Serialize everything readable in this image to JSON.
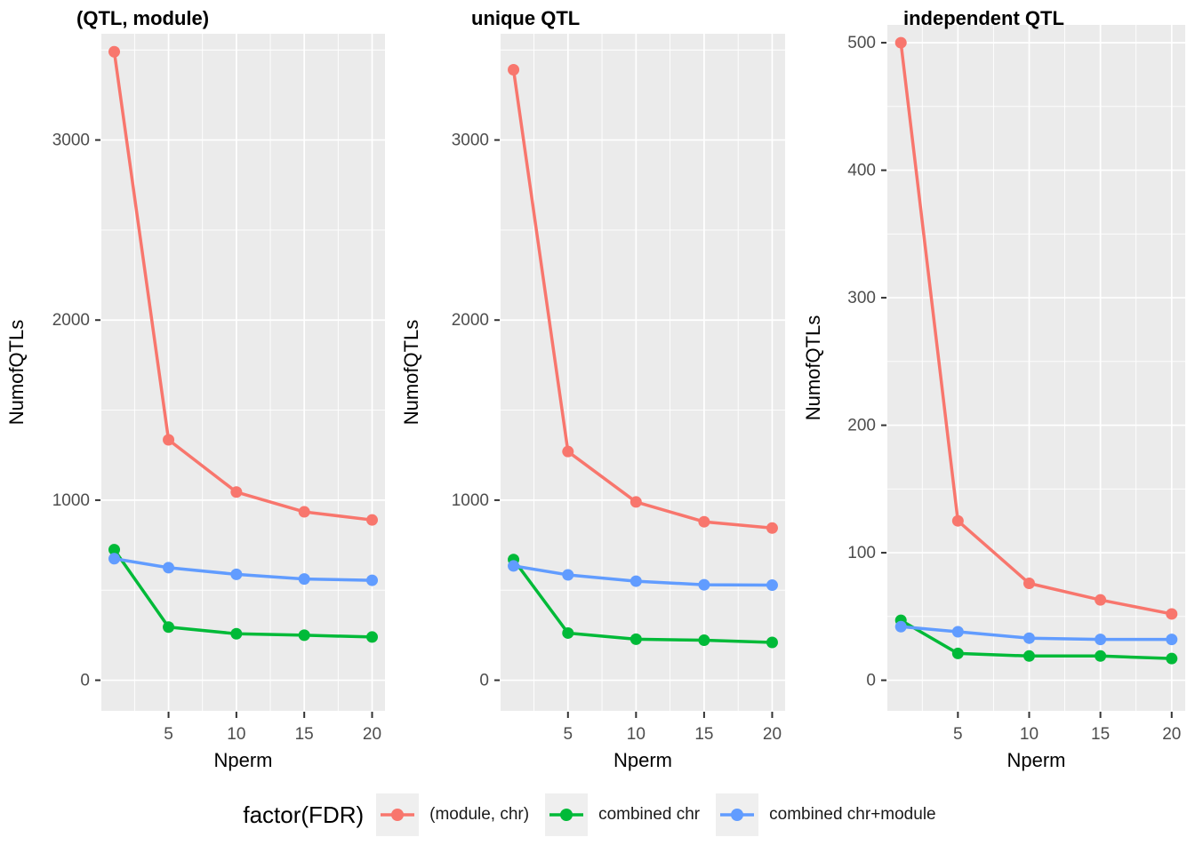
{
  "figure": {
    "background": "#FFFFFF",
    "panel_background": "#EBEBEB",
    "grid_color": "#FFFFFF",
    "tick_label_color": "#4D4D4D",
    "tick_mark_color": "#333333",
    "axis_title_color": "#000000",
    "title_color": "#000000"
  },
  "legend": {
    "title": "factor(FDR)",
    "position": "bottom",
    "entries": [
      {
        "label": "(module, chr)",
        "color": "#F8766D"
      },
      {
        "label": "combined chr",
        "color": "#00BA38"
      },
      {
        "label": "combined chr+module",
        "color": "#619CFF"
      }
    ]
  },
  "chart_data": [
    {
      "type": "line",
      "title": "(QTL, module)",
      "xlabel": "Nperm",
      "ylabel": "NumofQTLs",
      "x": [
        1,
        5,
        10,
        15,
        20
      ],
      "xticks": [
        5,
        10,
        15,
        20
      ],
      "xminor": [
        2.5,
        7.5,
        12.5,
        17.5
      ],
      "xlim": [
        0.05,
        20.95
      ],
      "ylim": [
        -170,
        3590
      ],
      "yticks": [
        0,
        1000,
        2000,
        3000
      ],
      "yminor": [
        500,
        1500,
        2500,
        3500
      ],
      "grid": true,
      "series": [
        {
          "name": "(module, chr)",
          "color": "#F8766D",
          "values": [
            3490,
            1335,
            1045,
            935,
            890
          ]
        },
        {
          "name": "combined chr",
          "color": "#00BA38",
          "values": [
            725,
            295,
            258,
            250,
            240
          ]
        },
        {
          "name": "combined chr+module",
          "color": "#619CFF",
          "values": [
            675,
            625,
            588,
            562,
            555
          ]
        }
      ]
    },
    {
      "type": "line",
      "title": "unique QTL",
      "xlabel": "Nperm",
      "ylabel": "NumofQTLs",
      "x": [
        1,
        5,
        10,
        15,
        20
      ],
      "xticks": [
        5,
        10,
        15,
        20
      ],
      "xminor": [
        2.5,
        7.5,
        12.5,
        17.5
      ],
      "xlim": [
        0.05,
        20.95
      ],
      "ylim": [
        -170,
        3590
      ],
      "yticks": [
        0,
        1000,
        2000,
        3000
      ],
      "yminor": [
        500,
        1500,
        2500,
        3500
      ],
      "grid": true,
      "series": [
        {
          "name": "(module, chr)",
          "color": "#F8766D",
          "values": [
            3390,
            1270,
            990,
            880,
            845
          ]
        },
        {
          "name": "combined chr",
          "color": "#00BA38",
          "values": [
            670,
            262,
            228,
            222,
            210
          ]
        },
        {
          "name": "combined chr+module",
          "color": "#619CFF",
          "values": [
            635,
            585,
            550,
            530,
            528
          ]
        }
      ]
    },
    {
      "type": "line",
      "title": "independent QTL",
      "xlabel": "Nperm",
      "ylabel": "NumofQTLs",
      "x": [
        1,
        5,
        10,
        15,
        20
      ],
      "xticks": [
        5,
        10,
        15,
        20
      ],
      "xminor": [
        2.5,
        7.5,
        12.5,
        17.5
      ],
      "xlim": [
        0.05,
        20.95
      ],
      "ylim": [
        -24,
        514
      ],
      "yticks": [
        0,
        100,
        200,
        300,
        400,
        500
      ],
      "yminor": [
        50,
        150,
        250,
        350,
        450
      ],
      "grid": true,
      "series": [
        {
          "name": "(module, chr)",
          "color": "#F8766D",
          "values": [
            500,
            125,
            76,
            63,
            52
          ]
        },
        {
          "name": "combined chr",
          "color": "#00BA38",
          "values": [
            47,
            21,
            19,
            19,
            17
          ]
        },
        {
          "name": "combined chr+module",
          "color": "#619CFF",
          "values": [
            42,
            38,
            33,
            32,
            32
          ]
        }
      ]
    }
  ]
}
